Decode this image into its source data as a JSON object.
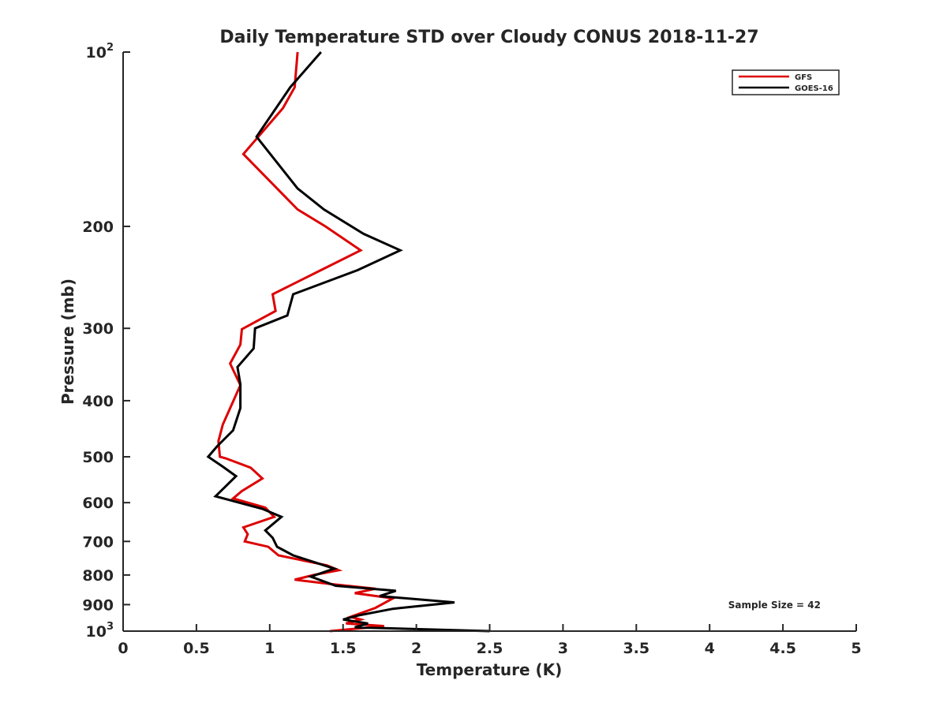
{
  "chart_data": {
    "type": "line",
    "title": "Daily Temperature STD over Cloudy CONUS 2018-11-27",
    "xlabel": "Temperature (K)",
    "ylabel": "Pressure (mb)",
    "xlim": [
      0,
      5
    ],
    "ylim": [
      100,
      1000
    ],
    "y_scale": "log",
    "y_reversed": true,
    "grid": false,
    "legend_position": "top-right",
    "x_ticks": [
      "0",
      "0.5",
      "1",
      "1.5",
      "2",
      "2.5",
      "3",
      "3.5",
      "4",
      "4.5",
      "5"
    ],
    "y_ticks": [
      {
        "value": 100,
        "base": "10",
        "exp": "2"
      },
      {
        "value": 200,
        "label": "200"
      },
      {
        "value": 300,
        "label": "300"
      },
      {
        "value": 400,
        "label": "400"
      },
      {
        "value": 500,
        "label": "500"
      },
      {
        "value": 600,
        "label": "600"
      },
      {
        "value": 700,
        "label": "700"
      },
      {
        "value": 800,
        "label": "800"
      },
      {
        "value": 900,
        "label": "900"
      },
      {
        "value": 1000,
        "base": "10",
        "exp": "3"
      }
    ],
    "annotation": "Sample Size = 42",
    "series": [
      {
        "name": "GFS",
        "color": "#dd0000",
        "points": [
          [
            1.19,
            100
          ],
          [
            1.17,
            115
          ],
          [
            1.09,
            125
          ],
          [
            0.82,
            150
          ],
          [
            1.19,
            187
          ],
          [
            1.38,
            200
          ],
          [
            1.62,
            220
          ],
          [
            1.32,
            240
          ],
          [
            1.02,
            262
          ],
          [
            1.04,
            280
          ],
          [
            0.81,
            301
          ],
          [
            0.8,
            320
          ],
          [
            0.73,
            345
          ],
          [
            0.8,
            376
          ],
          [
            0.68,
            440
          ],
          [
            0.65,
            470
          ],
          [
            0.66,
            500
          ],
          [
            0.7,
            503
          ],
          [
            0.87,
            522
          ],
          [
            0.95,
            545
          ],
          [
            0.81,
            573
          ],
          [
            0.75,
            590
          ],
          [
            0.97,
            612
          ],
          [
            1.03,
            635
          ],
          [
            0.82,
            662
          ],
          [
            0.85,
            680
          ],
          [
            0.83,
            700
          ],
          [
            0.99,
            715
          ],
          [
            1.06,
            740
          ],
          [
            1.39,
            770
          ],
          [
            1.47,
            785
          ],
          [
            1.3,
            800
          ],
          [
            1.17,
            815
          ],
          [
            1.43,
            830
          ],
          [
            1.72,
            845
          ],
          [
            1.58,
            860
          ],
          [
            1.84,
            878
          ],
          [
            1.72,
            912
          ],
          [
            1.55,
            945
          ],
          [
            1.62,
            955
          ],
          [
            1.52,
            970
          ],
          [
            1.78,
            980
          ],
          [
            1.41,
            1000
          ]
        ]
      },
      {
        "name": "GOES-16",
        "color": "#000000",
        "points": [
          [
            1.35,
            100
          ],
          [
            1.14,
            115
          ],
          [
            0.91,
            140
          ],
          [
            1.19,
            172
          ],
          [
            1.37,
            187
          ],
          [
            1.64,
            206
          ],
          [
            1.89,
            220
          ],
          [
            1.6,
            238
          ],
          [
            1.16,
            262
          ],
          [
            1.12,
            285
          ],
          [
            0.9,
            300
          ],
          [
            0.89,
            325
          ],
          [
            0.78,
            350
          ],
          [
            0.8,
            375
          ],
          [
            0.8,
            412
          ],
          [
            0.75,
            450
          ],
          [
            0.64,
            480
          ],
          [
            0.58,
            500
          ],
          [
            0.68,
            520
          ],
          [
            0.77,
            540
          ],
          [
            0.63,
            585
          ],
          [
            0.95,
            615
          ],
          [
            1.08,
            635
          ],
          [
            0.97,
            670
          ],
          [
            1.02,
            690
          ],
          [
            1.05,
            715
          ],
          [
            1.16,
            740
          ],
          [
            1.44,
            780
          ],
          [
            1.28,
            805
          ],
          [
            1.45,
            835
          ],
          [
            1.86,
            852
          ],
          [
            1.75,
            870
          ],
          [
            2.26,
            892
          ],
          [
            1.84,
            915
          ],
          [
            1.6,
            940
          ],
          [
            1.5,
            955
          ],
          [
            1.67,
            970
          ],
          [
            1.58,
            985
          ],
          [
            2.5,
            1000
          ]
        ]
      }
    ]
  }
}
